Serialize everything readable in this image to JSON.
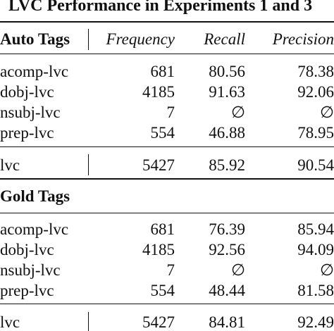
{
  "title": "LVC Performance in Experiments 1 and 3",
  "headers": {
    "auto_tags": "Auto Tags",
    "frequency": "Frequency",
    "recall": "Recall",
    "precision": "Precision"
  },
  "auto_rows": [
    {
      "label": "acomp-lvc",
      "frequency": "681",
      "recall": "80.56",
      "precision": "78.38"
    },
    {
      "label": "dobj-lvc",
      "frequency": "4185",
      "recall": "91.63",
      "precision": "92.06"
    },
    {
      "label": "nsubj-lvc",
      "frequency": "7",
      "recall": "∅",
      "precision": "∅"
    },
    {
      "label": "prep-lvc",
      "frequency": "554",
      "recall": "46.88",
      "precision": "78.95"
    }
  ],
  "auto_total": {
    "label": "lvc",
    "frequency": "5427",
    "recall": "85.92",
    "precision": "90.54"
  },
  "gold_header": "Gold Tags",
  "gold_rows": [
    {
      "label": "acomp-lvc",
      "frequency": "681",
      "recall": "76.39",
      "precision": "85.94"
    },
    {
      "label": "dobj-lvc",
      "frequency": "4185",
      "recall": "92.56",
      "precision": "94.09"
    },
    {
      "label": "nsubj-lvc",
      "frequency": "7",
      "recall": "∅",
      "precision": "∅"
    },
    {
      "label": "prep-lvc",
      "frequency": "554",
      "recall": "48.44",
      "precision": "81.58"
    }
  ],
  "gold_total": {
    "label": "lvc",
    "frequency": "5427",
    "recall": "84.81",
    "precision": "92.49"
  }
}
